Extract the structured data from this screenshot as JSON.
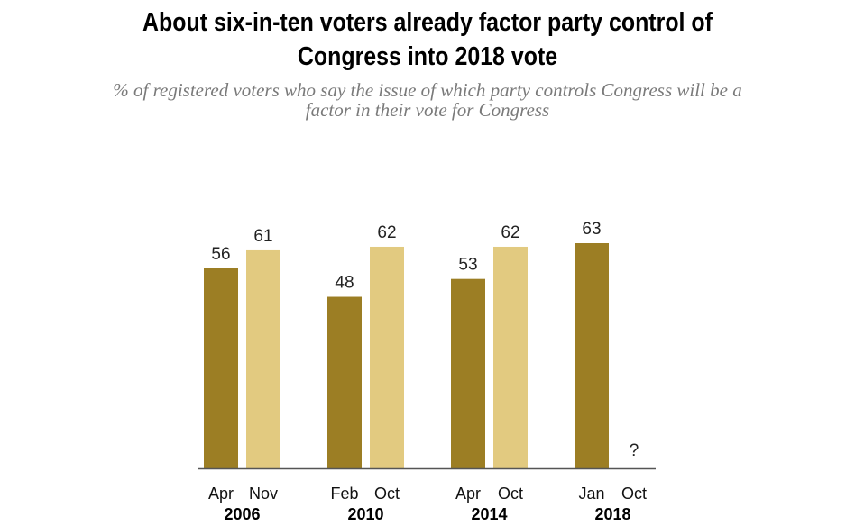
{
  "chart_data": {
    "type": "bar",
    "title": "About six-in-ten voters already factor party control of Congress into 2018 vote",
    "title_lines": [
      "About six-in-ten voters already factor party control of",
      "Congress into 2018 vote"
    ],
    "subtitle": "% of registered voters who say the issue of which party controls Congress will be a factor in their vote for Congress",
    "subtitle_lines": [
      "% of registered voters who say the issue of which party controls Congress will be a",
      "factor in their vote for Congress"
    ],
    "xlabel": "",
    "ylabel": "",
    "ylim": [
      0,
      63
    ],
    "grid": false,
    "legend": "none",
    "colors": {
      "early": "#9c7e24",
      "late": "#e2ca80",
      "baseline": "#555555"
    },
    "groups": [
      {
        "year": "2006",
        "bars": [
          {
            "month": "Apr",
            "value": 56,
            "label": "56",
            "shade": "early"
          },
          {
            "month": "Nov",
            "value": 61,
            "label": "61",
            "shade": "late"
          }
        ]
      },
      {
        "year": "2010",
        "bars": [
          {
            "month": "Feb",
            "value": 48,
            "label": "48",
            "shade": "early"
          },
          {
            "month": "Oct",
            "value": 62,
            "label": "62",
            "shade": "late"
          }
        ]
      },
      {
        "year": "2014",
        "bars": [
          {
            "month": "Apr",
            "value": 53,
            "label": "53",
            "shade": "early"
          },
          {
            "month": "Oct",
            "value": 62,
            "label": "62",
            "shade": "late"
          }
        ]
      },
      {
        "year": "2018",
        "bars": [
          {
            "month": "Jan",
            "value": 63,
            "label": "63",
            "shade": "early"
          },
          {
            "month": "Oct",
            "value": null,
            "label": "?",
            "shade": "late"
          }
        ]
      }
    ]
  }
}
